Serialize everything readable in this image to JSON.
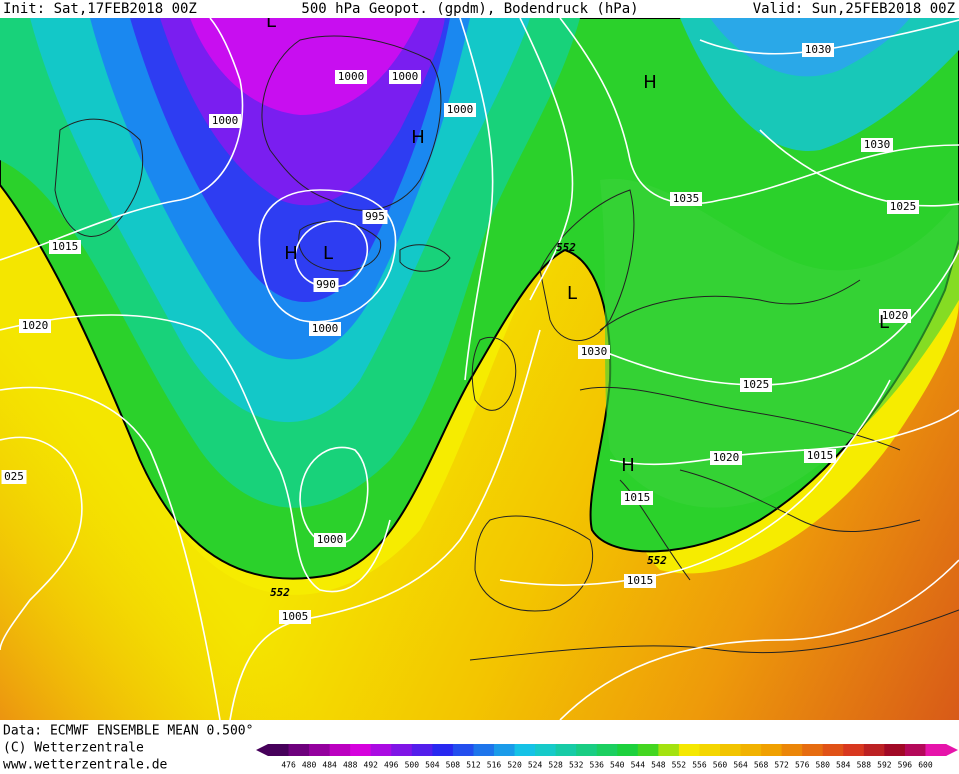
{
  "header": {
    "init": "Init: Sat,17FEB2018 00Z",
    "title": "500 hPa Geopot. (gpdm), Bodendruck (hPa)",
    "valid": "Valid: Sun,25FEB2018 00Z"
  },
  "map": {
    "isobar_labels": [
      "1000",
      "1000",
      "1000",
      "1000",
      "995",
      "990",
      "1000",
      "1015",
      "1020",
      "025",
      "1000",
      "552",
      "1005",
      "552",
      "1030",
      "1035",
      "1030",
      "1030",
      "1025",
      "1020",
      "1025",
      "1020",
      "1015",
      "1015",
      "552",
      "1015"
    ],
    "pressure_centers": [
      "H",
      "H",
      "L",
      "H",
      "L",
      "H",
      "L",
      "L"
    ]
  },
  "footer": {
    "data": "Data: ECMWF ENSEMBLE MEAN 0.500°",
    "copyright": "(C) Wetterzentrale",
    "url": "www.wetterzentrale.de"
  },
  "colorbar": {
    "levels": [
      476,
      480,
      484,
      488,
      492,
      496,
      500,
      504,
      508,
      512,
      516,
      520,
      524,
      528,
      532,
      536,
      540,
      544,
      548,
      552,
      556,
      560,
      564,
      568,
      572,
      576,
      580,
      584,
      588,
      592,
      596,
      600
    ]
  }
}
